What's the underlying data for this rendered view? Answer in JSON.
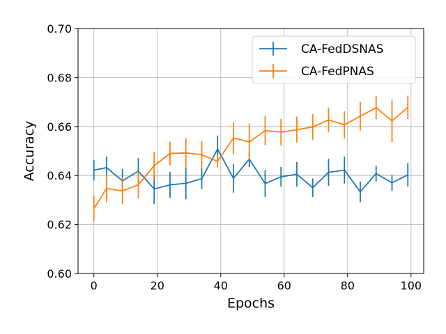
{
  "chart_data": {
    "type": "line",
    "title": "",
    "xlabel": "Epochs",
    "ylabel": "Accuracy",
    "xlim": [
      -5,
      104
    ],
    "ylim": [
      0.6,
      0.7
    ],
    "xticks": [
      0,
      20,
      40,
      60,
      80,
      100
    ],
    "yticks": [
      0.6,
      0.62,
      0.64,
      0.66,
      0.68,
      0.7
    ],
    "xtick_labels": [
      "0",
      "20",
      "40",
      "60",
      "80",
      "100"
    ],
    "ytick_labels": [
      "0.60",
      "0.62",
      "0.64",
      "0.66",
      "0.68",
      "0.70"
    ],
    "grid": true,
    "legend_position": "top-right",
    "x": [
      0,
      4,
      9,
      14,
      19,
      24,
      29,
      34,
      39,
      44,
      49,
      54,
      59,
      64,
      69,
      74,
      79,
      84,
      89,
      94,
      99
    ],
    "series": [
      {
        "name": "CA-FedDSNAS",
        "color": "#1f77b4",
        "values": [
          0.6422,
          0.6432,
          0.6378,
          0.6418,
          0.6345,
          0.6362,
          0.6368,
          0.6387,
          0.6508,
          0.6388,
          0.6467,
          0.6367,
          0.6395,
          0.6405,
          0.635,
          0.6413,
          0.6422,
          0.6333,
          0.6408,
          0.637,
          0.6403
        ],
        "errors": [
          0.0042,
          0.0045,
          0.0048,
          0.0053,
          0.0062,
          0.0053,
          0.0065,
          0.0043,
          0.0055,
          0.0058,
          0.0033,
          0.0055,
          0.004,
          0.005,
          0.0038,
          0.0055,
          0.0055,
          0.0042,
          0.0032,
          0.0033,
          0.0048
        ]
      },
      {
        "name": "CA-FedPNAS",
        "color": "#ff7f0e",
        "values": [
          0.6265,
          0.6347,
          0.6337,
          0.6362,
          0.644,
          0.649,
          0.6492,
          0.6485,
          0.6458,
          0.6553,
          0.6537,
          0.6583,
          0.6577,
          0.6587,
          0.6598,
          0.6627,
          0.6607,
          0.6642,
          0.6677,
          0.6623,
          0.6678
        ],
        "errors": [
          0.0052,
          0.0055,
          0.0052,
          0.0055,
          0.0055,
          0.0048,
          0.006,
          0.0055,
          0.0025,
          0.0065,
          0.0075,
          0.006,
          0.0055,
          0.0053,
          0.0052,
          0.005,
          0.0055,
          0.0058,
          0.0048,
          0.0088,
          0.0048
        ]
      }
    ]
  }
}
